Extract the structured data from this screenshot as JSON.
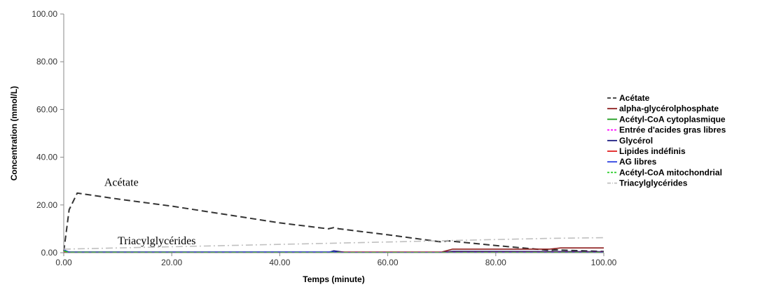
{
  "chart_data": {
    "type": "line",
    "xlabel": "Temps (minute)",
    "ylabel": "Concentration (mmol/L)",
    "xlim": [
      0,
      100
    ],
    "ylim": [
      0,
      100
    ],
    "xticks": [
      "0.00",
      "20.00",
      "40.00",
      "60.00",
      "80.00",
      "100.00"
    ],
    "yticks": [
      "0.00",
      "20.00",
      "40.00",
      "60.00",
      "80.00",
      "100.00"
    ],
    "grid": false,
    "legend_position": "right",
    "annotations": [
      {
        "text": "Acétate",
        "x": 7.5,
        "y": 28
      },
      {
        "text": "Triacylglycérides",
        "x": 10,
        "y": 3.5
      }
    ],
    "series": [
      {
        "name": "Acétate",
        "color": "#333333",
        "dash": "long-dash",
        "x": [
          0,
          1,
          2.5,
          10,
          20,
          30,
          40,
          49,
          50,
          51,
          60,
          70,
          71,
          80,
          90,
          91,
          100
        ],
        "y": [
          0.5,
          18,
          25,
          22.5,
          19.5,
          16,
          12.5,
          10,
          10.5,
          10,
          7.5,
          4.5,
          5,
          3,
          1,
          1.2,
          0.5
        ]
      },
      {
        "name": "alpha-glycérolphosphate",
        "color": "#8b1a1a",
        "dash": "solid",
        "x": [
          0,
          50,
          70,
          72,
          90,
          92,
          100
        ],
        "y": [
          0.3,
          0.3,
          0.3,
          1.5,
          1.5,
          2,
          2
        ]
      },
      {
        "name": "Acétyl-CoA cytoplasmique",
        "color": "#1a9a1a",
        "dash": "solid",
        "x": [
          0,
          1,
          50,
          100
        ],
        "y": [
          1,
          0.3,
          0.2,
          0.2
        ]
      },
      {
        "name": "Entrée d'acides gras libres",
        "color": "#ff00ff",
        "dash": "dash",
        "x": [
          0,
          100
        ],
        "y": [
          0.1,
          0.1
        ]
      },
      {
        "name": "Glycérol",
        "color": "#1a1a80",
        "dash": "solid",
        "x": [
          0,
          49,
          50,
          52,
          70,
          72,
          100
        ],
        "y": [
          0.1,
          0.1,
          0.8,
          0.2,
          0.2,
          0.6,
          0.4
        ]
      },
      {
        "name": "Lipides indéfinis",
        "color": "#e02020",
        "dash": "solid",
        "x": [
          0,
          100
        ],
        "y": [
          0.2,
          0.2
        ]
      },
      {
        "name": "AG libres",
        "color": "#2a3ee0",
        "dash": "solid",
        "x": [
          0,
          1,
          50,
          51,
          100
        ],
        "y": [
          1.2,
          0.2,
          0.3,
          0.1,
          0.1
        ]
      },
      {
        "name": "Acétyl-CoA mitochondrial",
        "color": "#22cc22",
        "dash": "dash",
        "x": [
          0,
          1,
          100
        ],
        "y": [
          0.8,
          0.1,
          0.1
        ]
      },
      {
        "name": "Triacylglycérides",
        "color": "#c0c0c0",
        "dash": "dash-dot",
        "x": [
          0,
          10,
          20,
          30,
          40,
          50,
          60,
          70,
          80,
          90,
          100
        ],
        "y": [
          1.5,
          2,
          2.5,
          3,
          3.5,
          4,
          4.5,
          5,
          5.5,
          6,
          6.3
        ]
      }
    ]
  }
}
